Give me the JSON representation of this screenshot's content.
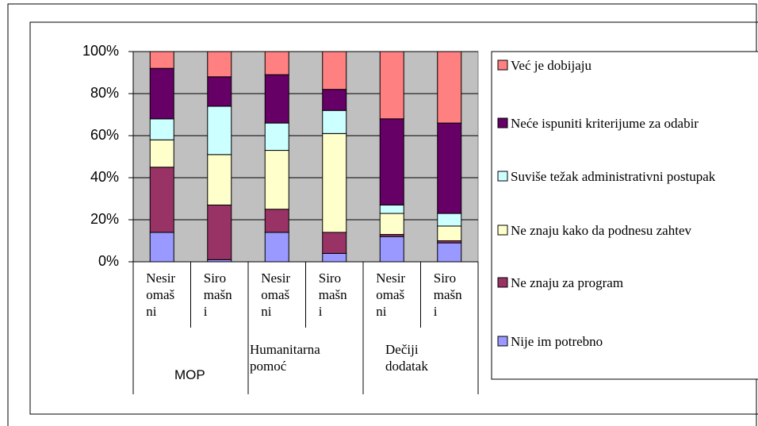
{
  "chart_data": {
    "type": "stacked_bar_100",
    "categories": [
      "Nesiromašni",
      "Siromašni",
      "Nesiromašni",
      "Siromašni",
      "Nesiromašni",
      "Siromašni"
    ],
    "category_groups": [
      "MOP",
      "Humanitarna pomoć",
      "Dečiji dodatak"
    ],
    "series": [
      {
        "name": "Nije im potrebno",
        "color": "#9999ff",
        "values": [
          14,
          1,
          14,
          4,
          12,
          9
        ]
      },
      {
        "name": "Ne znaju za program",
        "color": "#993366",
        "values": [
          31,
          26,
          11,
          10,
          1,
          1
        ]
      },
      {
        "name": "Ne znaju kako da podnesu zahtev",
        "color": "#ffffcc",
        "values": [
          13,
          24,
          28,
          47,
          10,
          7
        ]
      },
      {
        "name": "Suviše težak administrativni postupak",
        "color": "#ccffff",
        "values": [
          10,
          23,
          13,
          11,
          4,
          6
        ]
      },
      {
        "name": "Neće ispuniti kriterijume za odabir",
        "color": "#660066",
        "values": [
          24,
          14,
          23,
          10,
          41,
          43
        ]
      },
      {
        "name": "Već je dobijaju",
        "color": "#ff8080",
        "values": [
          8,
          12,
          11,
          18,
          32,
          34
        ]
      }
    ],
    "ylim": [
      0,
      100
    ],
    "yticks": [
      {
        "value": 0,
        "label": "0%"
      },
      {
        "value": 20,
        "label": "20%"
      },
      {
        "value": 40,
        "label": "40%"
      },
      {
        "value": 60,
        "label": "60%"
      },
      {
        "value": 80,
        "label": "80%"
      },
      {
        "value": 100,
        "label": "100%"
      }
    ],
    "grid": true,
    "legend": "right",
    "plot_background": "#c0c0c0"
  }
}
